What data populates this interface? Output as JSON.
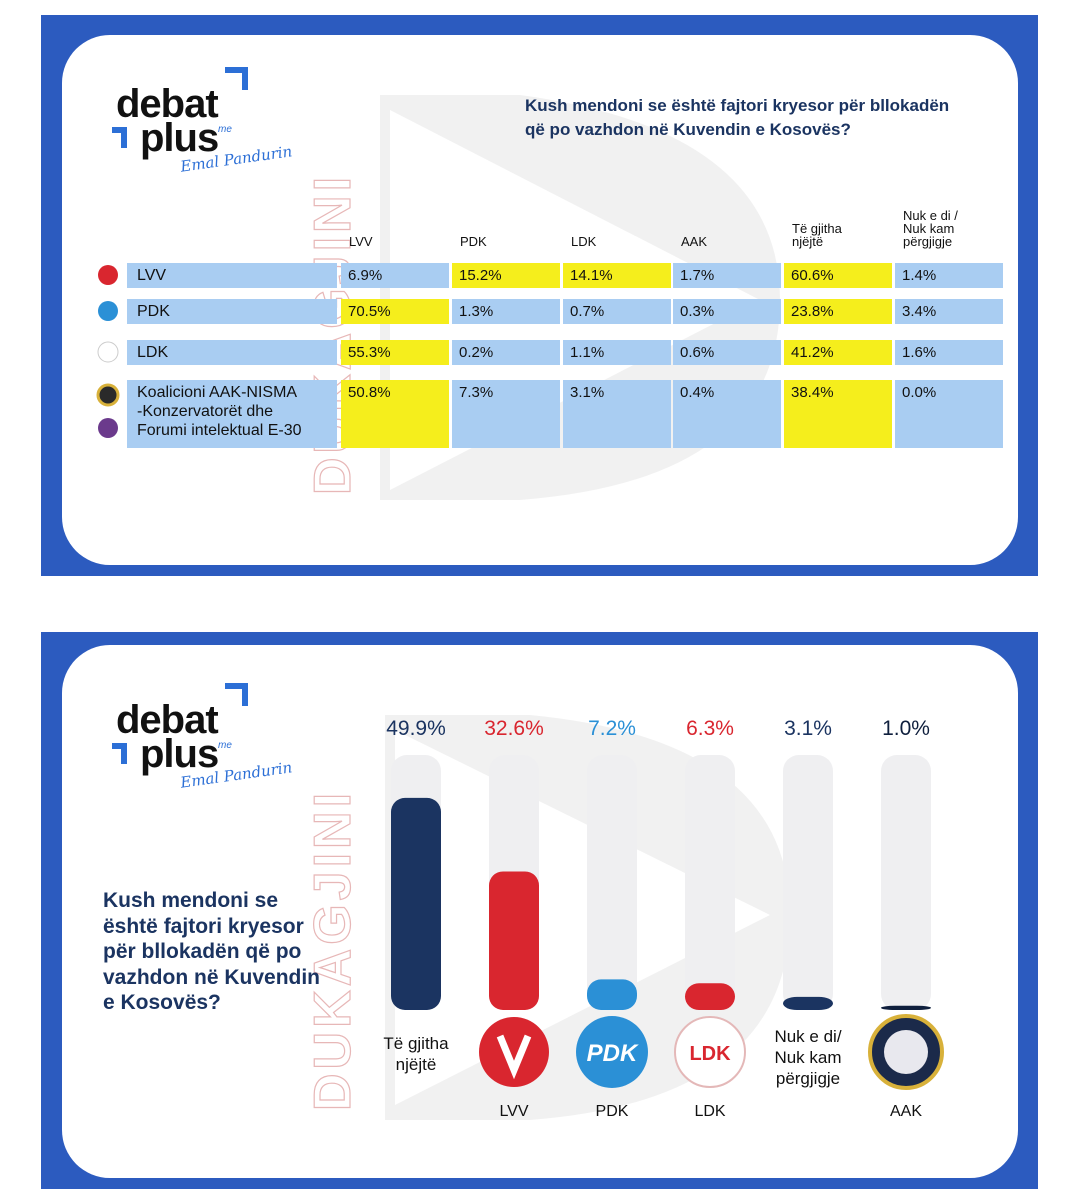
{
  "brand": {
    "line1": "debat",
    "line2": "plus",
    "signature_prefix": "me",
    "signature": "Emal Pandurin"
  },
  "watermark": "DUKAGJINI",
  "table": {
    "title": "Kush mendoni se është fajtori kryesor për bllokadën\nqë po vazhdon në Kuvendin e Kosovës?",
    "columns": [
      "LVV",
      "PDK",
      "LDK",
      "AAK",
      "Të gjitha\nnjëjtë",
      "Nuk e di /\nNuk kam\npërgjigje"
    ],
    "cell_color": "#a9cdf2",
    "highlight_color": "#f5ee1c",
    "rows": [
      {
        "name": "LVV",
        "cells": [
          "6.9%",
          "15.2%",
          "14.1%",
          "1.7%",
          "60.6%",
          "1.4%"
        ],
        "highlight": [
          1,
          2,
          4
        ]
      },
      {
        "name": "PDK",
        "cells": [
          "70.5%",
          "1.3%",
          "0.7%",
          "0.3%",
          "23.8%",
          "3.4%"
        ],
        "highlight": [
          0,
          4
        ]
      },
      {
        "name": "LDK",
        "cells": [
          "55.3%",
          "0.2%",
          "1.1%",
          "0.6%",
          "41.2%",
          "1.6%"
        ],
        "highlight": [
          0,
          4
        ]
      },
      {
        "name": "Koalicioni AAK-NISMA\n-Konzervatorët dhe\nForumi intelektual E-30",
        "cells": [
          "50.8%",
          "7.3%",
          "3.1%",
          "0.4%",
          "38.4%",
          "0.0%"
        ],
        "highlight": [
          0,
          4
        ]
      }
    ]
  },
  "chart_data": {
    "type": "bar",
    "title": "Kush mendoni se\nështë fajtori kryesor\npër bllokadën që po\nvazhdon në Kuvendin\ne Kosovës?",
    "categories": [
      "Të gjitha\nnjëjtë",
      "LVV",
      "PDK",
      "LDK",
      "Nuk e di/\nNuk kam\npërgjigje",
      "AAK"
    ],
    "values": [
      49.9,
      32.6,
      7.2,
      6.3,
      3.1,
      1.0
    ],
    "value_labels": [
      "49.9%",
      "32.6%",
      "7.2%",
      "6.3%",
      "3.1%",
      "1.0%"
    ],
    "colors": [
      "#1b3461",
      "#d9262f",
      "#2b90d6",
      "#d9262f",
      "#1b3461",
      "#0f1f3d"
    ],
    "ylim": [
      0,
      60
    ]
  }
}
